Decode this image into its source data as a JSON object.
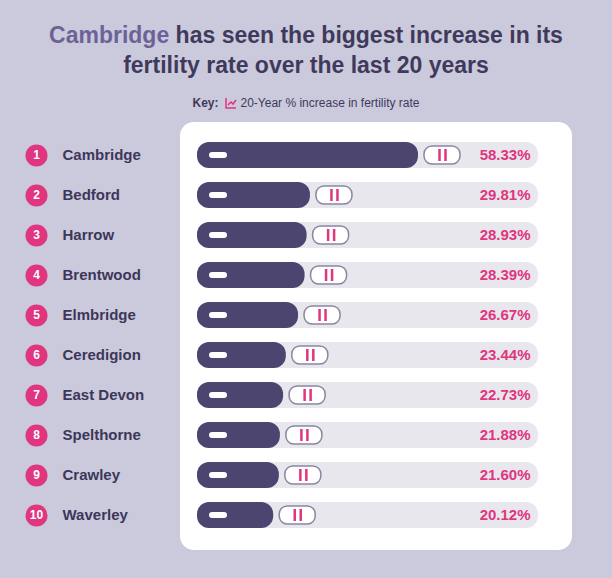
{
  "chart_data": {
    "type": "bar",
    "orientation": "horizontal",
    "title": "Cambridge has seen the biggest increase in its fertility rate over the last 20 years",
    "legend_title": "Key:",
    "legend": "top",
    "categories": [
      "Cambridge",
      "Bedford",
      "Harrow",
      "Brentwood",
      "Elmbridge",
      "Ceredigion",
      "East Devon",
      "Spelthorne",
      "Crawley",
      "Waverley"
    ],
    "ranks": [
      1,
      2,
      3,
      4,
      5,
      6,
      7,
      8,
      9,
      10
    ],
    "series": [
      {
        "name": "20-Year % increase in fertility rate",
        "color": "#4b4570",
        "values": [
          58.33,
          29.81,
          28.93,
          28.39,
          26.67,
          23.44,
          22.73,
          21.88,
          21.6,
          20.12
        ],
        "value_labels": [
          "58.33%",
          "29.81%",
          "28.93%",
          "28.39%",
          "26.67%",
          "23.44%",
          "22.73%",
          "21.88%",
          "21.60%",
          "20.12%"
        ]
      }
    ],
    "xlim": [
      0,
      90
    ],
    "xticks": [],
    "data_labels": true,
    "tick_labels": "y",
    "grid": false
  }
}
